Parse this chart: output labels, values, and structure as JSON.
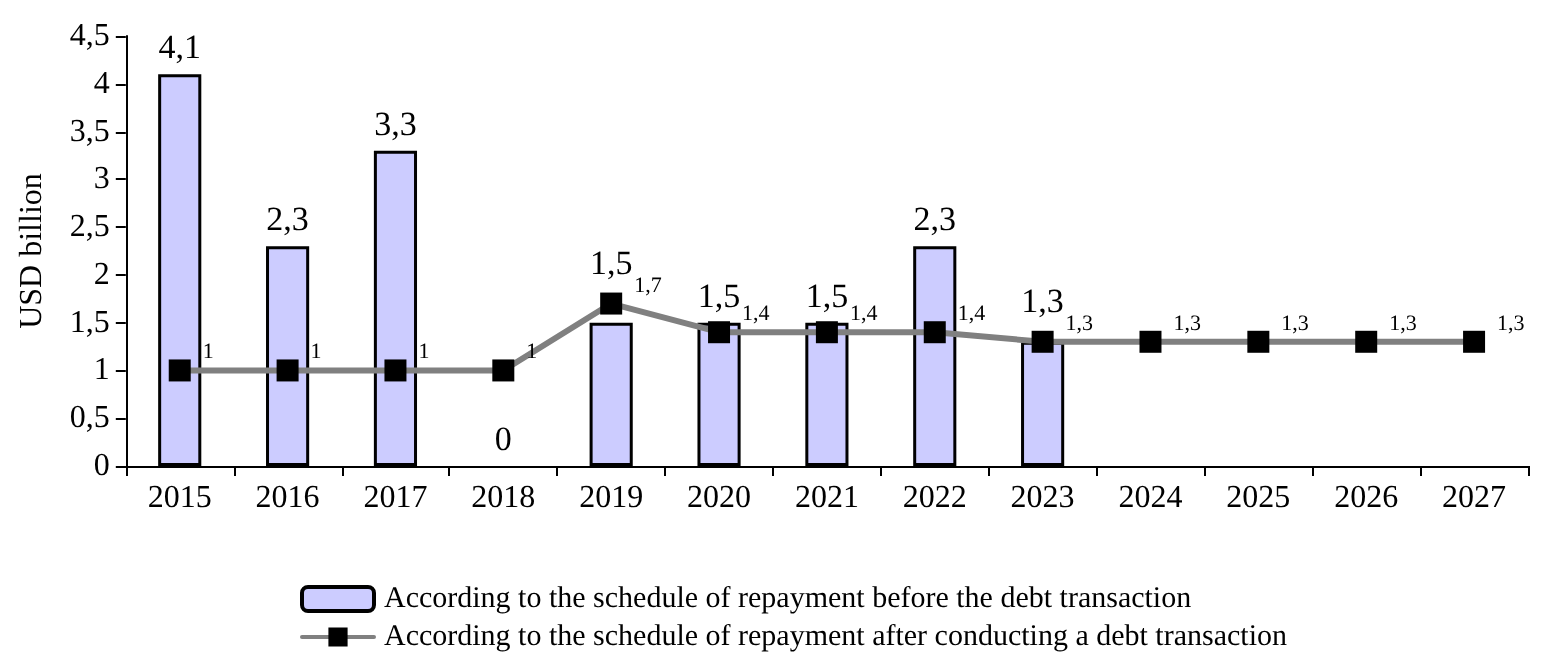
{
  "chart_data": {
    "type": "bar",
    "ylabel": "USD billion",
    "categories": [
      "2015",
      "2016",
      "2017",
      "2018",
      "2019",
      "2020",
      "2021",
      "2022",
      "2023",
      "2024",
      "2025",
      "2026",
      "2027"
    ],
    "series": [
      {
        "name": "According to the schedule of repayment before the debt transaction",
        "color": "#ccccff",
        "values": [
          4.1,
          2.3,
          3.3,
          0,
          1.5,
          1.5,
          1.5,
          2.3,
          1.3,
          null,
          null,
          null,
          null
        ],
        "value_labels": [
          "4,1",
          "2,3",
          "3,3",
          "0",
          "1,5",
          "1,5",
          "1,5",
          "2,3",
          "1,3",
          null,
          null,
          null,
          null
        ]
      },
      {
        "name": "According to the schedule of repayment after conducting a debt transaction",
        "type": "line",
        "color": "#808080",
        "marker": "square",
        "values": [
          1,
          1,
          1,
          1,
          1.7,
          1.4,
          1.4,
          1.4,
          1.3,
          1.3,
          1.3,
          1.3,
          1.3
        ],
        "value_labels": [
          "1",
          "1",
          "1",
          "1",
          "1,7",
          "1,4",
          "1,4",
          "1,4",
          "1,3",
          "1,3",
          "1,3",
          "1,3",
          "1,3"
        ]
      }
    ],
    "ylim": [
      0,
      4.5
    ],
    "yticks": [
      0,
      {
        "value": 0.5,
        "label": "0,5"
      },
      1,
      {
        "value": 1.5,
        "label": "1,5"
      },
      2,
      {
        "value": 2.5,
        "label": "2,5"
      },
      3,
      {
        "value": 3.5,
        "label": "3,5"
      },
      4,
      {
        "value": 4.5,
        "label": "4,5"
      }
    ],
    "grid": false,
    "legend": "bottom"
  }
}
